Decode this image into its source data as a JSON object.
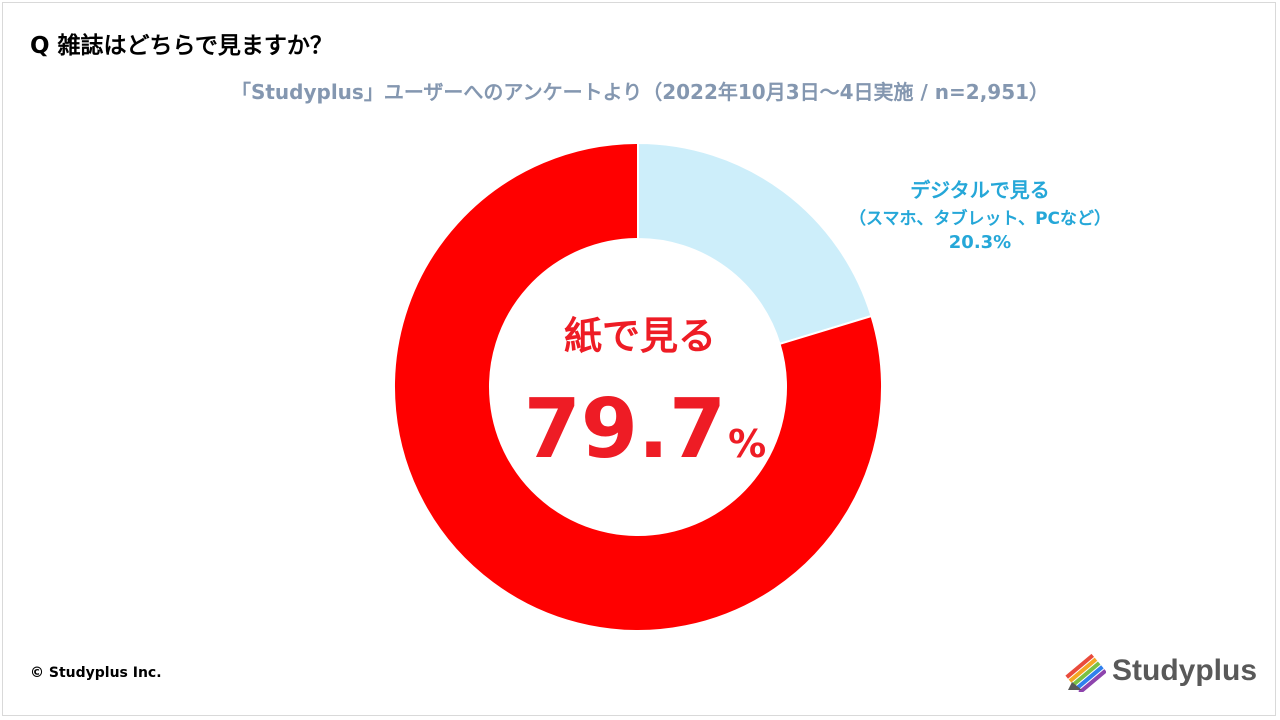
{
  "question": "Q 雑誌はどちらで見ますか？",
  "subtitle": "「Studyplus」ユーザーへのアンケートより（2022年10月3日～4日実施 / n=2,951）",
  "chart_data": {
    "type": "pie",
    "donut": true,
    "categories": [
      "紙で見る",
      "デジタルで見る（スマホ、タブレット、PCなど）"
    ],
    "values": [
      79.7,
      20.3
    ],
    "unit": "%",
    "colors": [
      "#ff0000",
      "#cdeefa"
    ],
    "labels": {
      "paper_title": "紙で見る",
      "paper_value": "79.7",
      "paper_unit": "%",
      "digital_line1": "デジタルで見る",
      "digital_line2": "（スマホ、タブレット、PCなど）",
      "digital_value": "20.3%"
    }
  },
  "footer": {
    "copyright": "© Studyplus Inc.",
    "logo_text": "Studyplus",
    "logo_icon": "colored-stripes-pencil-icon"
  }
}
